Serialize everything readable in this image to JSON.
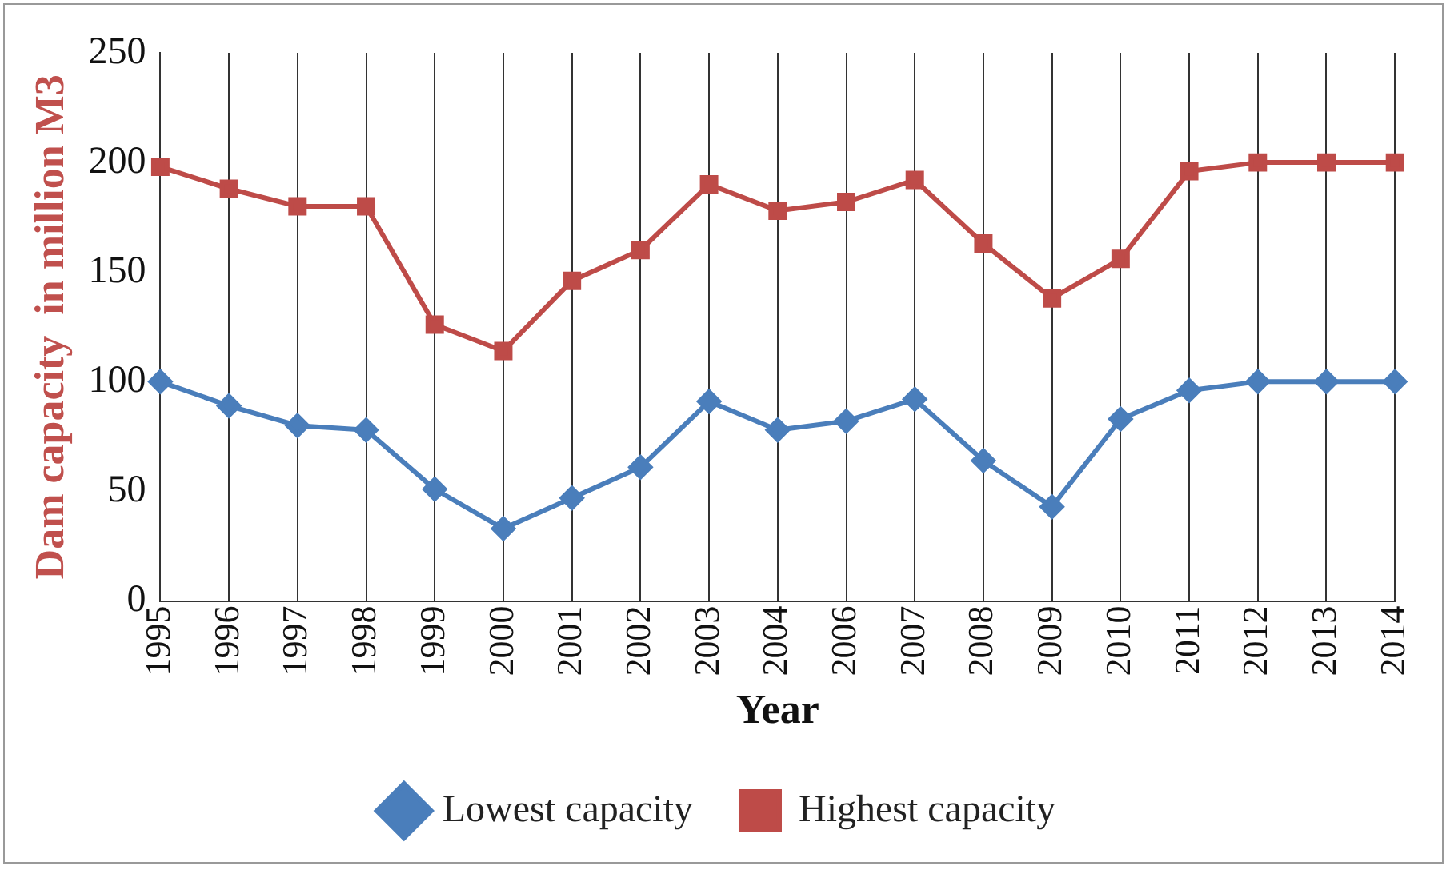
{
  "chart_data": {
    "type": "line",
    "xlabel": "Year",
    "ylabel": "Dam capacity  in million M3",
    "categories": [
      "1995",
      "1996",
      "1997",
      "1998",
      "1999",
      "2000",
      "2001",
      "2002",
      "2003",
      "2004",
      "2006",
      "2007",
      "2008",
      "2009",
      "2010",
      "2011",
      "2012",
      "2013",
      "2014"
    ],
    "series": [
      {
        "name": "Lowest capacity",
        "color": "#4a7ebb",
        "marker": "diamond",
        "values": [
          100,
          89,
          80,
          78,
          51,
          33,
          47,
          61,
          91,
          78,
          82,
          92,
          64,
          43,
          83,
          96,
          100,
          100,
          100
        ]
      },
      {
        "name": "Highest capacity",
        "color": "#be4b48",
        "marker": "square",
        "values": [
          198,
          188,
          180,
          180,
          126,
          114,
          146,
          160,
          190,
          178,
          182,
          192,
          163,
          138,
          156,
          196,
          200,
          200,
          200
        ]
      }
    ],
    "ylim": [
      0,
      250
    ],
    "yticks": [
      0,
      50,
      100,
      150,
      200,
      250
    ],
    "grid": "x",
    "legend": "bottom"
  }
}
